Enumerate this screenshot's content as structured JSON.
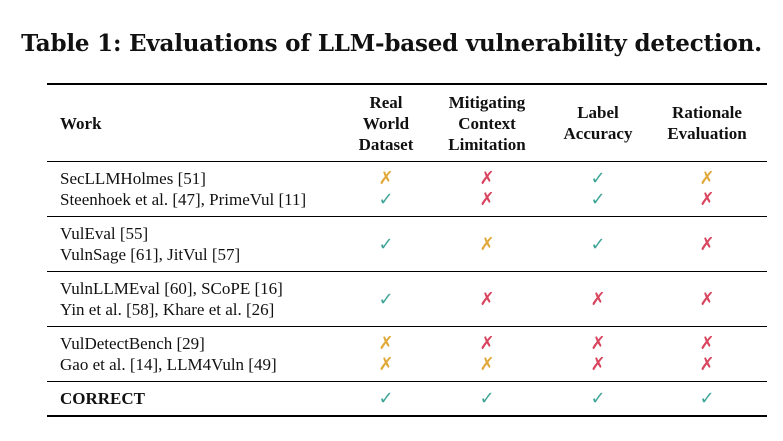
{
  "caption": "Table 1: Evaluations of LLM-based vulnerability detection.",
  "headers": {
    "work": "Work",
    "real_world": [
      "Real",
      "World",
      "Dataset"
    ],
    "mitigating": [
      "Mitigating",
      "Context",
      "Limitation"
    ],
    "label": [
      "Label",
      "Accuracy"
    ],
    "rationale": [
      "Rationale",
      "Evaluation"
    ]
  },
  "groups": [
    {
      "rows": [
        {
          "work": "SecLLMHolmes [51]",
          "marks": [
            "partial",
            "no",
            "yes",
            "partial"
          ]
        },
        {
          "work": "Steenhoek et al. [47], PrimeVul [11]",
          "marks": [
            "yes",
            "no",
            "yes",
            "no"
          ]
        }
      ]
    },
    {
      "works": [
        "VulEval [55]",
        "VulnSage [61], JitVul [57]"
      ],
      "marks": [
        "yes",
        "partial",
        "yes",
        "no"
      ]
    },
    {
      "works": [
        "VulnLLMEval [60], SCoPE [16]",
        "Yin et al. [58], Khare et al. [26]"
      ],
      "marks": [
        "yes",
        "no",
        "no",
        "no"
      ]
    },
    {
      "rows": [
        {
          "work": "VulDetectBench [29]",
          "marks": [
            "partial",
            "no",
            "no",
            "no"
          ]
        },
        {
          "work": "Gao et al. [14], LLM4Vuln [49]",
          "marks": [
            "partial",
            "partial",
            "no",
            "no"
          ]
        }
      ]
    },
    {
      "rows": [
        {
          "work": "CORRECT",
          "marks": [
            "yes",
            "yes",
            "yes",
            "yes"
          ]
        }
      ]
    }
  ],
  "symbols": {
    "yes": "✓",
    "no": "✗",
    "partial": "✗"
  },
  "colors": {
    "yes": "#3fa596",
    "no": "#d9455f",
    "partial": "#e0a93a"
  }
}
